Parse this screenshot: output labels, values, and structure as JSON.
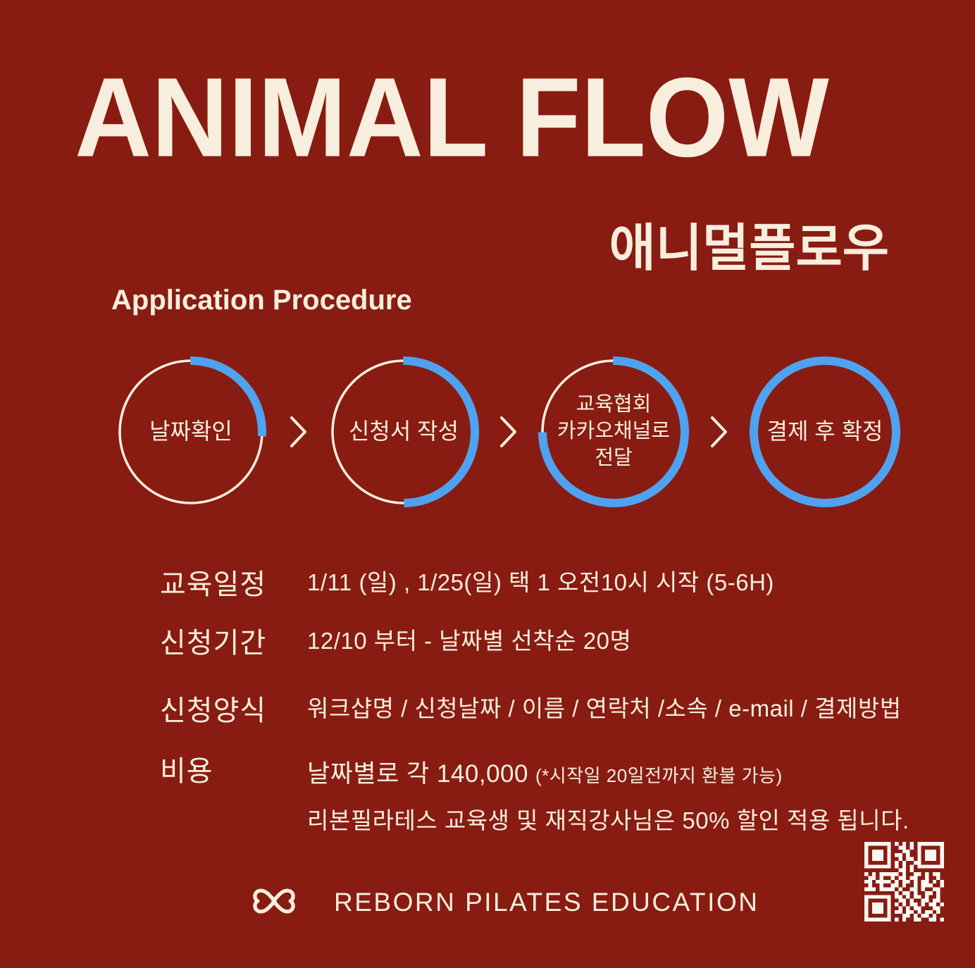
{
  "poster": {
    "title": "ANIMAL FLOW",
    "korean_title": "애니멀플로우",
    "section_title": "Application Procedure"
  },
  "steps": {
    "separator_icon": "chevron-right-icon",
    "items": [
      {
        "label": "날짜확인",
        "progress_percent": 26
      },
      {
        "label": "신청서 작성",
        "progress_percent": 50
      },
      {
        "label": "교육협회\n카카오채널로\n전달",
        "progress_percent": 75,
        "small_text": true
      },
      {
        "label": "결제 후 확정",
        "progress_percent": 100
      }
    ]
  },
  "details": {
    "rows": [
      {
        "label": "교육일정",
        "value": "1/11 (일) , 1/25(일) 택 1  오전10시 시작 (5-6H)"
      },
      {
        "label": "신청기간",
        "value": "12/10 부터  -  날짜별 선착순 20명"
      },
      {
        "label": "신청양식",
        "value": "워크샵명 / 신청날짜 / 이름 / 연락처 /소속 / e-mail / 결제방법"
      },
      {
        "label": "비용",
        "value": "날짜별로 각 140,000",
        "note": "(*시작일 20일전까지 환불 가능)",
        "value_line2": "리본필라테스 교육생 및 재직강사님은 50% 할인 적용 됩니다."
      }
    ]
  },
  "footer": {
    "brand": "REBORN PILATES EDUCATION",
    "logo_icon": "reborn-hearts-bow-logo",
    "qr_matrix": [
      "111111101010101111111",
      "100000100110101000001",
      "101110100011001011101",
      "101110101101001011101",
      "101110100101101011101",
      "100000101010011000001",
      "111111101010101111111",
      "000000000110100000000",
      "101011111010011010110",
      "011010010110110010010",
      "110111101011010110101",
      "010010011010010111001",
      "111011110100110100110",
      "000000001011010011010",
      "111111101101011010010",
      "100000100110100110110",
      "101110101010110101101",
      "101110100101011000110",
      "101110101101101011010",
      "100000100011010110100",
      "111111101010011001101"
    ]
  },
  "colors": {
    "background": "#881c12",
    "cream": "#f7eedd",
    "progress_blue": "#4fa2f0",
    "qr_white": "#fbf8f2"
  }
}
